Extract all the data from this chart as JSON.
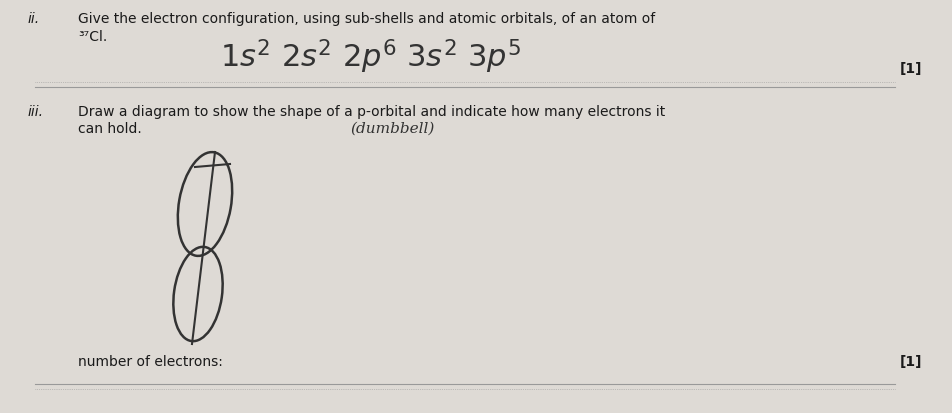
{
  "bg_color": "#dedad5",
  "text_color": "#1a1a1a",
  "question_ii_label": "ii.",
  "question_ii_text_line1": "Give the electron configuration, using sub-shells and atomic orbitals, of an atom of",
  "question_ii_text_line2": "³⁷Cl.",
  "question_ii_mark": "[1]",
  "question_iii_label": "iii.",
  "question_iii_text_line1": "Draw a diagram to show the shape of a p-orbital and indicate how many electrons it",
  "question_iii_text_line2": "can hold.",
  "dumbbell_annotation": "(dumbbell)",
  "question_iii_mark": "[1]",
  "number_of_electrons_label": "number of electrons:",
  "separator_line_color": "#999999",
  "handwriting_color": "#333333"
}
